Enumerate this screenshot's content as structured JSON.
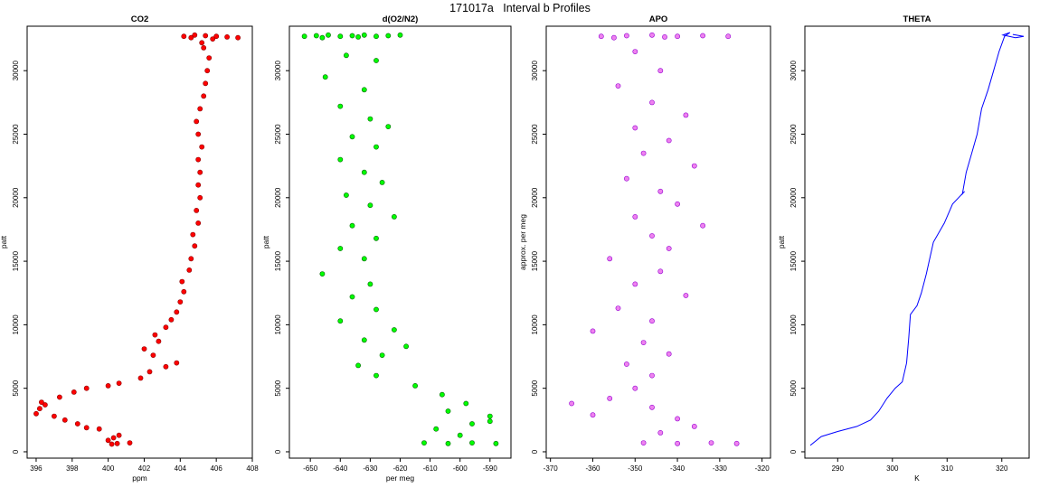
{
  "figure_title": "171017a   Interval b Profiles",
  "chart_data": [
    {
      "type": "scatter",
      "title": "CO2",
      "xlabel": "ppm",
      "ylabel": "patt",
      "xlim": [
        395.5,
        408
      ],
      "ylim": [
        -500,
        33500
      ],
      "xticks": [
        396,
        398,
        400,
        402,
        404,
        406,
        408
      ],
      "yticks": [
        0,
        5000,
        10000,
        15000,
        20000,
        25000,
        30000
      ],
      "xtick_labels": [
        "396",
        "398",
        "400",
        "402",
        "404",
        "406",
        "408"
      ],
      "ytick_labels": [
        "0",
        "5000",
        "10000",
        "15000",
        "20000",
        "25000",
        "30000"
      ],
      "color": "#ff0000",
      "outline_color": "#8b0000",
      "points": [
        [
          400.2,
          600
        ],
        [
          400.5,
          650
        ],
        [
          401.2,
          700
        ],
        [
          400.0,
          900
        ],
        [
          400.3,
          1100
        ],
        [
          400.6,
          1300
        ],
        [
          396.0,
          3000
        ],
        [
          396.2,
          3400
        ],
        [
          396.5,
          3700
        ],
        [
          396.3,
          3900
        ],
        [
          397.0,
          2800
        ],
        [
          397.6,
          2500
        ],
        [
          398.3,
          2200
        ],
        [
          398.8,
          1900
        ],
        [
          399.5,
          1800
        ],
        [
          397.3,
          4300
        ],
        [
          398.1,
          4700
        ],
        [
          398.8,
          5000
        ],
        [
          400.0,
          5200
        ],
        [
          400.6,
          5400
        ],
        [
          401.8,
          5800
        ],
        [
          402.3,
          6300
        ],
        [
          403.2,
          6700
        ],
        [
          403.8,
          7000
        ],
        [
          402.5,
          7600
        ],
        [
          402.0,
          8100
        ],
        [
          402.8,
          8700
        ],
        [
          402.6,
          9200
        ],
        [
          403.2,
          9800
        ],
        [
          403.5,
          10400
        ],
        [
          403.8,
          11000
        ],
        [
          404.0,
          11800
        ],
        [
          404.2,
          12600
        ],
        [
          404.1,
          13400
        ],
        [
          404.5,
          14300
        ],
        [
          404.6,
          15200
        ],
        [
          404.8,
          16200
        ],
        [
          404.7,
          17100
        ],
        [
          405.0,
          18000
        ],
        [
          404.9,
          19000
        ],
        [
          405.1,
          20000
        ],
        [
          405.0,
          21000
        ],
        [
          405.1,
          22000
        ],
        [
          405.0,
          23000
        ],
        [
          405.2,
          24000
        ],
        [
          405.0,
          25000
        ],
        [
          404.9,
          26000
        ],
        [
          405.1,
          27000
        ],
        [
          405.3,
          28000
        ],
        [
          405.4,
          29000
        ],
        [
          405.5,
          30000
        ],
        [
          405.6,
          31000
        ],
        [
          405.3,
          31800
        ],
        [
          405.2,
          32200
        ],
        [
          404.2,
          32700
        ],
        [
          404.8,
          32800
        ],
        [
          405.4,
          32750
        ],
        [
          406.0,
          32700
        ],
        [
          406.6,
          32650
        ],
        [
          407.2,
          32600
        ],
        [
          405.8,
          32500
        ],
        [
          404.6,
          32600
        ]
      ]
    },
    {
      "type": "scatter",
      "title": "d(O2/N2)",
      "xlabel": "per meg",
      "ylabel": "patt",
      "xlim": [
        -657,
        -583
      ],
      "ylim": [
        -500,
        33500
      ],
      "xticks": [
        -650,
        -640,
        -630,
        -620,
        -610,
        -600,
        -590
      ],
      "yticks": [
        0,
        5000,
        10000,
        15000,
        20000,
        25000,
        30000
      ],
      "xtick_labels": [
        "-650",
        "-640",
        "-630",
        "-620",
        "-610",
        "-600",
        "-590"
      ],
      "ytick_labels": [
        "0",
        "5000",
        "10000",
        "15000",
        "20000",
        "25000",
        "30000"
      ],
      "color": "#00ff00",
      "outline_color": "#006400",
      "points": [
        [
          -652,
          32700
        ],
        [
          -648,
          32750
        ],
        [
          -644,
          32800
        ],
        [
          -640,
          32700
        ],
        [
          -636,
          32750
        ],
        [
          -632,
          32800
        ],
        [
          -628,
          32700
        ],
        [
          -624,
          32750
        ],
        [
          -620,
          32800
        ],
        [
          -646,
          32600
        ],
        [
          -634,
          32650
        ],
        [
          -638,
          31200
        ],
        [
          -628,
          30800
        ],
        [
          -645,
          29500
        ],
        [
          -632,
          28500
        ],
        [
          -640,
          27200
        ],
        [
          -630,
          26200
        ],
        [
          -624,
          25600
        ],
        [
          -636,
          24800
        ],
        [
          -628,
          24000
        ],
        [
          -640,
          23000
        ],
        [
          -632,
          22000
        ],
        [
          -626,
          21200
        ],
        [
          -638,
          20200
        ],
        [
          -630,
          19400
        ],
        [
          -622,
          18500
        ],
        [
          -636,
          17800
        ],
        [
          -628,
          16800
        ],
        [
          -640,
          16000
        ],
        [
          -632,
          15200
        ],
        [
          -646,
          14000
        ],
        [
          -630,
          13200
        ],
        [
          -636,
          12200
        ],
        [
          -628,
          11200
        ],
        [
          -640,
          10300
        ],
        [
          -622,
          9600
        ],
        [
          -632,
          8800
        ],
        [
          -618,
          8300
        ],
        [
          -626,
          7600
        ],
        [
          -634,
          6800
        ],
        [
          -628,
          6000
        ],
        [
          -615,
          5200
        ],
        [
          -606,
          4500
        ],
        [
          -598,
          3800
        ],
        [
          -604,
          3200
        ],
        [
          -590,
          2800
        ],
        [
          -596,
          2200
        ],
        [
          -608,
          1800
        ],
        [
          -600,
          1300
        ],
        [
          -612,
          700
        ],
        [
          -604,
          650
        ],
        [
          -596,
          700
        ],
        [
          -588,
          650
        ],
        [
          -590,
          2400
        ]
      ]
    },
    {
      "type": "scatter",
      "title": "APO",
      "xlabel": "",
      "ylabel": "approx. per meg",
      "xlim": [
        -371,
        -318
      ],
      "ylim": [
        -500,
        33500
      ],
      "xticks": [
        -370,
        -360,
        -350,
        -340,
        -330,
        -320
      ],
      "yticks": [
        0,
        5000,
        10000,
        15000,
        20000,
        25000,
        30000
      ],
      "xtick_labels": [
        "-370",
        "-360",
        "-350",
        "-340",
        "-330",
        "-320"
      ],
      "ytick_labels": [
        "0",
        "5000",
        "10000",
        "15000",
        "20000",
        "25000",
        "30000"
      ],
      "color": "#ee82ee",
      "outline_color": "#9400d3",
      "points": [
        [
          -358,
          32700
        ],
        [
          -352,
          32750
        ],
        [
          -346,
          32800
        ],
        [
          -340,
          32700
        ],
        [
          -334,
          32750
        ],
        [
          -328,
          32700
        ],
        [
          -355,
          32600
        ],
        [
          -343,
          32650
        ],
        [
          -350,
          31500
        ],
        [
          -344,
          30000
        ],
        [
          -354,
          28800
        ],
        [
          -346,
          27500
        ],
        [
          -338,
          26500
        ],
        [
          -350,
          25500
        ],
        [
          -342,
          24500
        ],
        [
          -348,
          23500
        ],
        [
          -336,
          22500
        ],
        [
          -352,
          21500
        ],
        [
          -344,
          20500
        ],
        [
          -340,
          19500
        ],
        [
          -350,
          18500
        ],
        [
          -334,
          17800
        ],
        [
          -346,
          17000
        ],
        [
          -342,
          16000
        ],
        [
          -356,
          15200
        ],
        [
          -344,
          14200
        ],
        [
          -350,
          13200
        ],
        [
          -338,
          12300
        ],
        [
          -354,
          11300
        ],
        [
          -346,
          10300
        ],
        [
          -360,
          9500
        ],
        [
          -348,
          8600
        ],
        [
          -342,
          7700
        ],
        [
          -352,
          6900
        ],
        [
          -346,
          6000
        ],
        [
          -350,
          5000
        ],
        [
          -356,
          4200
        ],
        [
          -346,
          3500
        ],
        [
          -340,
          2600
        ],
        [
          -336,
          2000
        ],
        [
          -344,
          1500
        ],
        [
          -348,
          700
        ],
        [
          -340,
          650
        ],
        [
          -332,
          700
        ],
        [
          -326,
          650
        ],
        [
          -365,
          3800
        ],
        [
          -360,
          2900
        ]
      ]
    },
    {
      "type": "line",
      "title": "THETA",
      "xlabel": "K",
      "ylabel": "patt",
      "xlim": [
        284,
        325
      ],
      "ylim": [
        -500,
        33500
      ],
      "xticks": [
        290,
        300,
        310,
        320
      ],
      "yticks": [
        0,
        5000,
        10000,
        15000,
        20000,
        25000,
        30000
      ],
      "xtick_labels": [
        "290",
        "300",
        "310",
        "320"
      ],
      "ytick_labels": [
        "0",
        "5000",
        "10000",
        "15000",
        "20000",
        "25000",
        "30000"
      ],
      "color": "#0000ff",
      "points": [
        [
          285.0,
          500
        ],
        [
          287.0,
          1200
        ],
        [
          290.0,
          1600
        ],
        [
          293.5,
          2000
        ],
        [
          296.0,
          2500
        ],
        [
          297.5,
          3200
        ],
        [
          299.0,
          4200
        ],
        [
          300.5,
          5000
        ],
        [
          301.8,
          5500
        ],
        [
          302.6,
          7000
        ],
        [
          303.0,
          9000
        ],
        [
          303.3,
          10800
        ],
        [
          304.5,
          11500
        ],
        [
          305.3,
          12500
        ],
        [
          306.2,
          14000
        ],
        [
          307.5,
          16500
        ],
        [
          309.5,
          18000
        ],
        [
          311.0,
          19500
        ],
        [
          313.2,
          20500
        ],
        [
          312.8,
          20300
        ],
        [
          313.5,
          22000
        ],
        [
          314.5,
          23500
        ],
        [
          315.5,
          25000
        ],
        [
          316.3,
          27000
        ],
        [
          317.5,
          28500
        ],
        [
          318.5,
          30000
        ],
        [
          319.5,
          31500
        ],
        [
          320.5,
          32700
        ],
        [
          321.5,
          33000
        ],
        [
          320.2,
          32800
        ],
        [
          322.5,
          32600
        ],
        [
          324.0,
          32700
        ],
        [
          322.0,
          32850
        ]
      ]
    }
  ]
}
